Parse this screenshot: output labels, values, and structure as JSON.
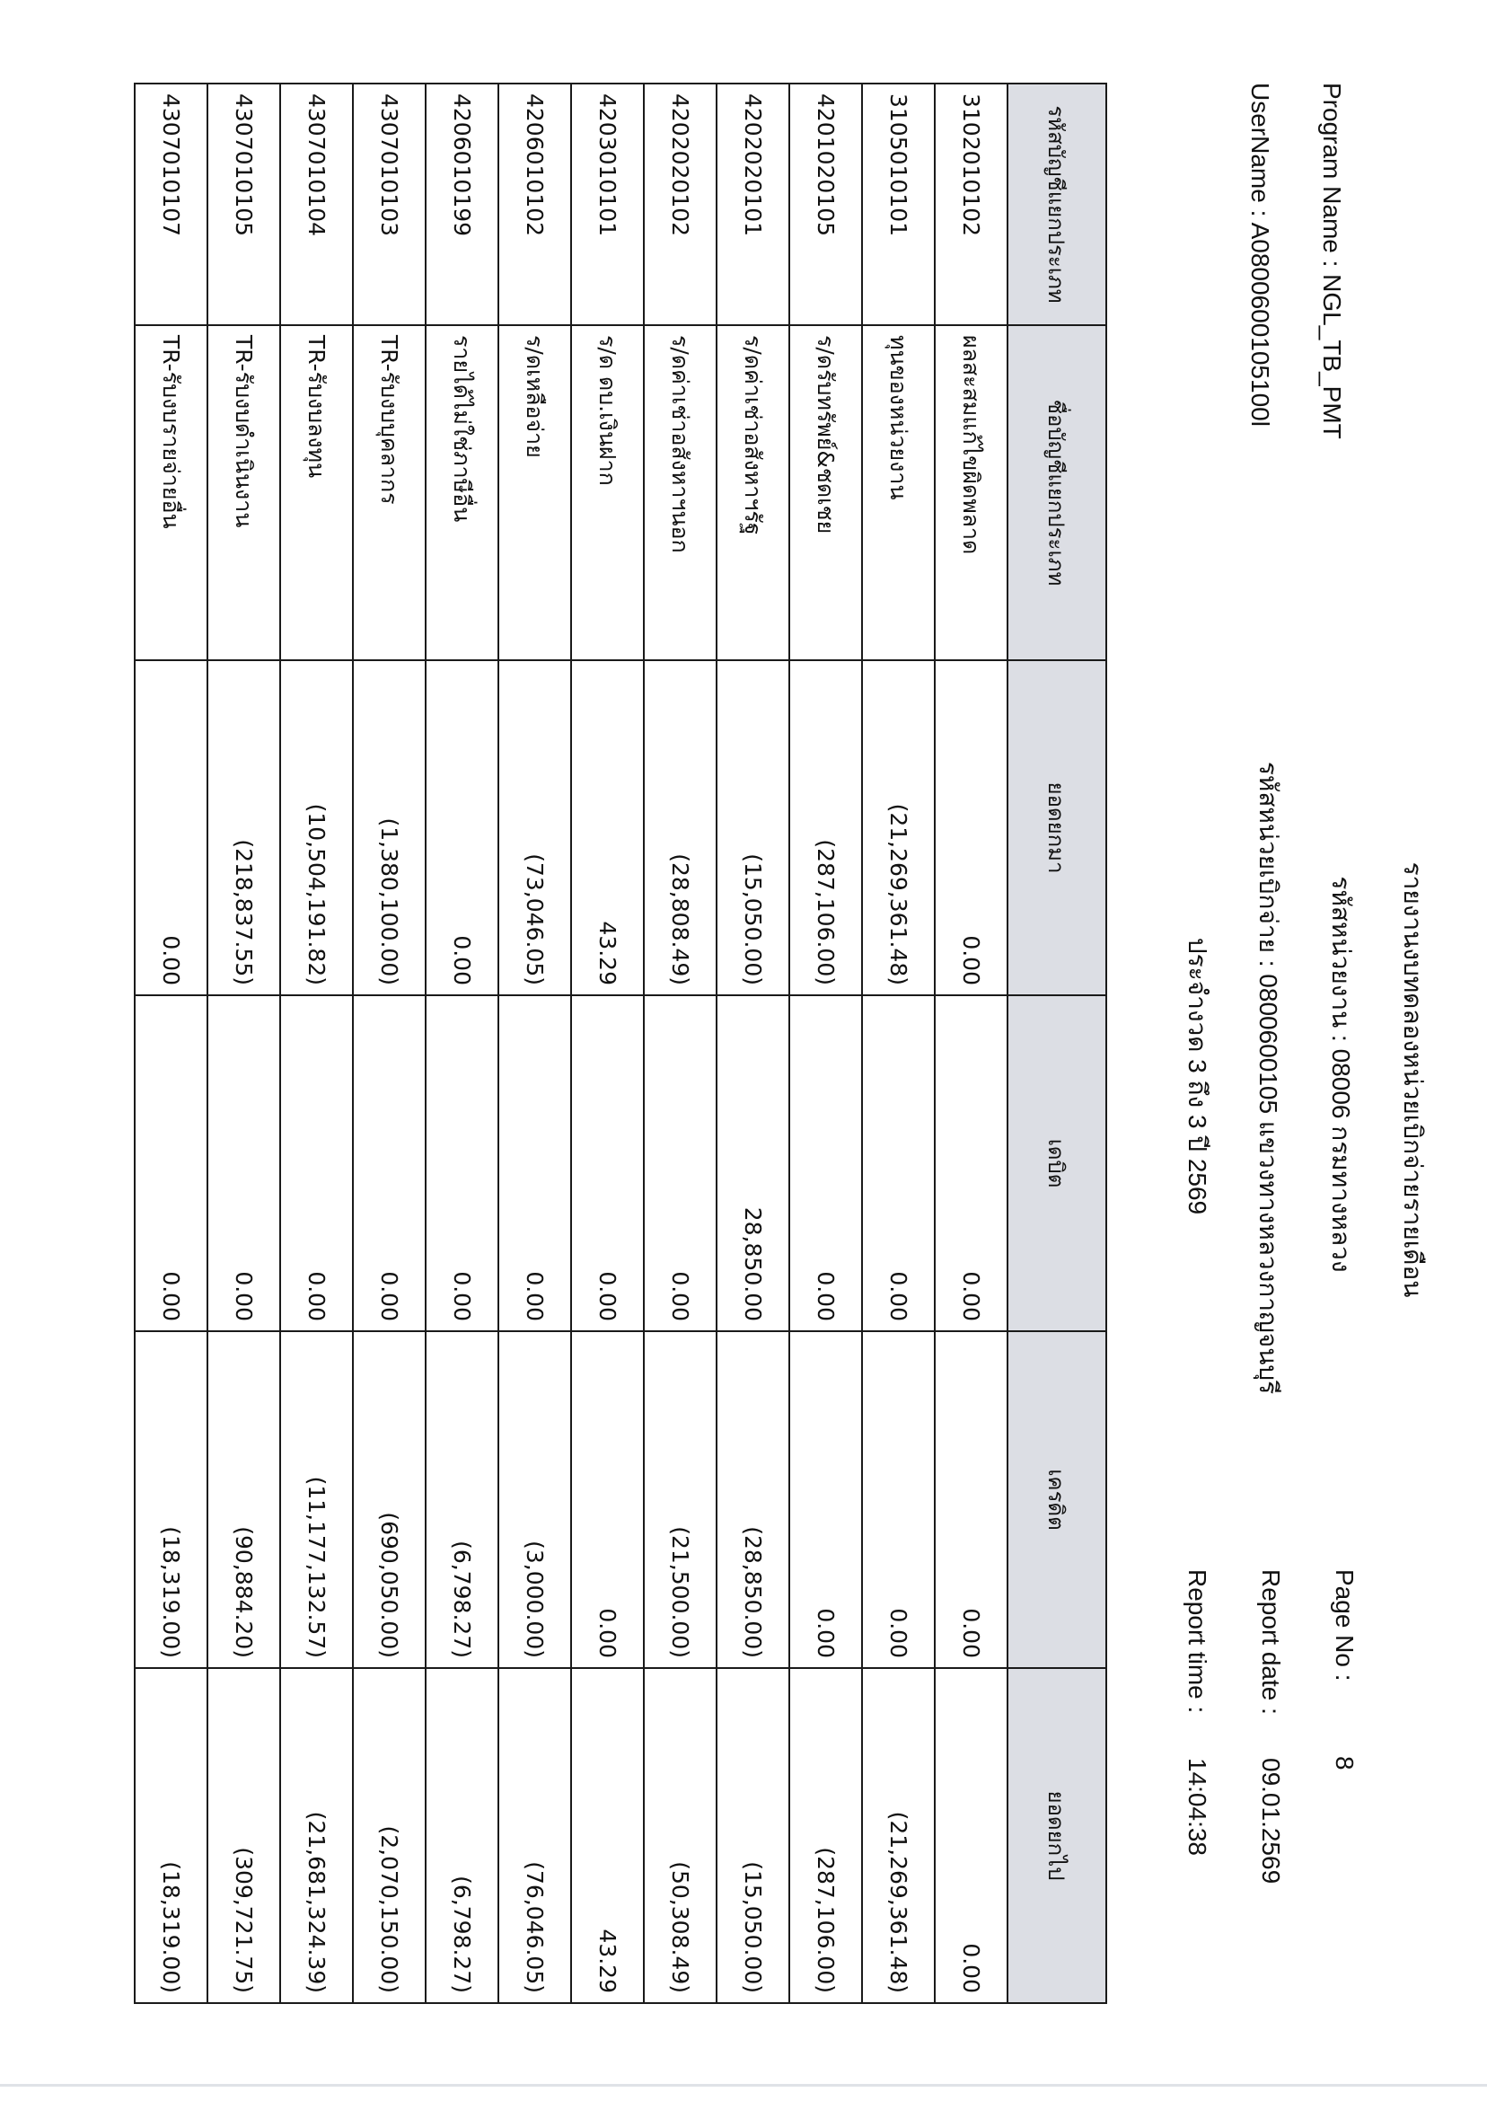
{
  "header": {
    "title": "รายงานงบทดลองหน่วยเบิกจ่ายรายเดือน",
    "agency": "รหัสหน่วยงาน : 08006 กรมทางหลวง",
    "disbursement_unit": "รหัสหน่วยเบิกจ่าย : 0800600105 แขวงทางหลวงกาญจนบุรี",
    "period": "ประจำงวด 3 ถึง 3 ปี 2569",
    "program_name": "Program Name : NGL_TB_PMT",
    "username": "UserName : A0800600105100l",
    "page_no_label": "Page No :",
    "page_no": "8",
    "report_date_label": "Report date :",
    "report_date": "09.01.2569",
    "report_time_label": "Report time :",
    "report_time": "14:04:38"
  },
  "table": {
    "columns": [
      "รหัสบัญชีแยกประเภท",
      "ชื่อบัญชีแยกประเภท",
      "ยอดยกมา",
      "เดบิต",
      "เครดิต",
      "ยอดยกไป"
    ],
    "rows": [
      {
        "code": "3102010102",
        "name": "ผลสะสมแก้ไขผิดพลาด",
        "opening": "0.00",
        "debit": "0.00",
        "credit": "0.00",
        "closing": "0.00"
      },
      {
        "code": "3105010101",
        "name": "ทุนของหน่วยงาน",
        "opening": "(21,269,361.48)",
        "debit": "0.00",
        "credit": "0.00",
        "closing": "(21,269,361.48)"
      },
      {
        "code": "4201020105",
        "name": "ร/ดรับทรัพย์&ชดเชย",
        "opening": "(287,106.00)",
        "debit": "0.00",
        "credit": "0.00",
        "closing": "(287,106.00)"
      },
      {
        "code": "4202020101",
        "name": "ร/ดค่าเช่าอสังหาฯรัฐ",
        "opening": "(15,050.00)",
        "debit": "28,850.00",
        "credit": "(28,850.00)",
        "closing": "(15,050.00)"
      },
      {
        "code": "4202020102",
        "name": "ร/ดค่าเช่าอสังหาฯนอก",
        "opening": "(28,808.49)",
        "debit": "0.00",
        "credit": "(21,500.00)",
        "closing": "(50,308.49)"
      },
      {
        "code": "4203010101",
        "name": "ร/ด ดบ.เงินฝาก",
        "opening": "43.29",
        "debit": "0.00",
        "credit": "0.00",
        "closing": "43.29"
      },
      {
        "code": "4206010102",
        "name": "ร/ดเหลือจ่าย",
        "opening": "(73,046.05)",
        "debit": "0.00",
        "credit": "(3,000.00)",
        "closing": "(76,046.05)"
      },
      {
        "code": "4206010199",
        "name": "รายได้ไม่ใช่ภาษีอื่น",
        "opening": "0.00",
        "debit": "0.00",
        "credit": "(6,798.27)",
        "closing": "(6,798.27)"
      },
      {
        "code": "4307010103",
        "name": "TR-รับงบบุคลากร",
        "opening": "(1,380,100.00)",
        "debit": "0.00",
        "credit": "(690,050.00)",
        "closing": "(2,070,150.00)"
      },
      {
        "code": "4307010104",
        "name": "TR-รับงบลงทุน",
        "opening": "(10,504,191.82)",
        "debit": "0.00",
        "credit": "(11,177,132.57)",
        "closing": "(21,681,324.39)"
      },
      {
        "code": "4307010105",
        "name": "TR-รับงบดำเนินงาน",
        "opening": "(218,837.55)",
        "debit": "0.00",
        "credit": "(90,884.20)",
        "closing": "(309,721.75)"
      },
      {
        "code": "4307010107",
        "name": "TR-รับงบรายจ่ายอื่น",
        "opening": "0.00",
        "debit": "0.00",
        "credit": "(18,319.00)",
        "closing": "(18,319.00)"
      }
    ]
  },
  "colors": {
    "header_fill": "#dcdee4",
    "border": "#1a1a1a"
  }
}
